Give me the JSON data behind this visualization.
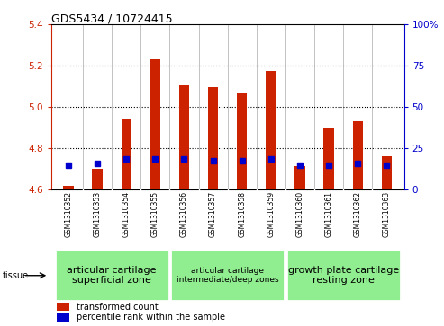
{
  "title": "GDS5434 / 10724415",
  "samples": [
    "GSM1310352",
    "GSM1310353",
    "GSM1310354",
    "GSM1310355",
    "GSM1310356",
    "GSM1310357",
    "GSM1310358",
    "GSM1310359",
    "GSM1310360",
    "GSM1310361",
    "GSM1310362",
    "GSM1310363"
  ],
  "red_values": [
    4.615,
    4.7,
    4.94,
    5.23,
    5.105,
    5.095,
    5.07,
    5.175,
    4.71,
    4.895,
    4.93,
    4.76
  ],
  "blue_values": [
    4.716,
    4.726,
    4.745,
    4.745,
    4.745,
    4.736,
    4.736,
    4.745,
    4.716,
    4.716,
    4.726,
    4.716
  ],
  "ylim_left": [
    4.6,
    5.4
  ],
  "ylim_right": [
    0,
    100
  ],
  "ybase": 4.6,
  "yticks_left": [
    4.6,
    4.8,
    5.0,
    5.2,
    5.4
  ],
  "yticks_right": [
    0,
    25,
    50,
    75,
    100
  ],
  "ytick_labels_right": [
    "0",
    "25",
    "50",
    "75",
    "100%"
  ],
  "groups": [
    {
      "label": "articular cartilage\nsuperficial zone",
      "start": 0,
      "end": 3,
      "fontsize": 8
    },
    {
      "label": "articular cartilage\nintermediate/deep zones",
      "start": 4,
      "end": 7,
      "fontsize": 6.5
    },
    {
      "label": "growth plate cartilage\nresting zone",
      "start": 8,
      "end": 11,
      "fontsize": 8
    }
  ],
  "group_color": "#90ee90",
  "bar_color": "#cc2200",
  "blue_color": "#0000cc",
  "bar_width": 0.35,
  "plot_bg_color": "#ffffff",
  "label_bg_color": "#c8c8c8",
  "tissue_label": "tissue",
  "legend_red": "transformed count",
  "legend_blue": "percentile rank within the sample",
  "left_axis_color": "#cc2200",
  "right_axis_color": "#0000cc",
  "grid_yticks": [
    4.8,
    5.0,
    5.2
  ]
}
